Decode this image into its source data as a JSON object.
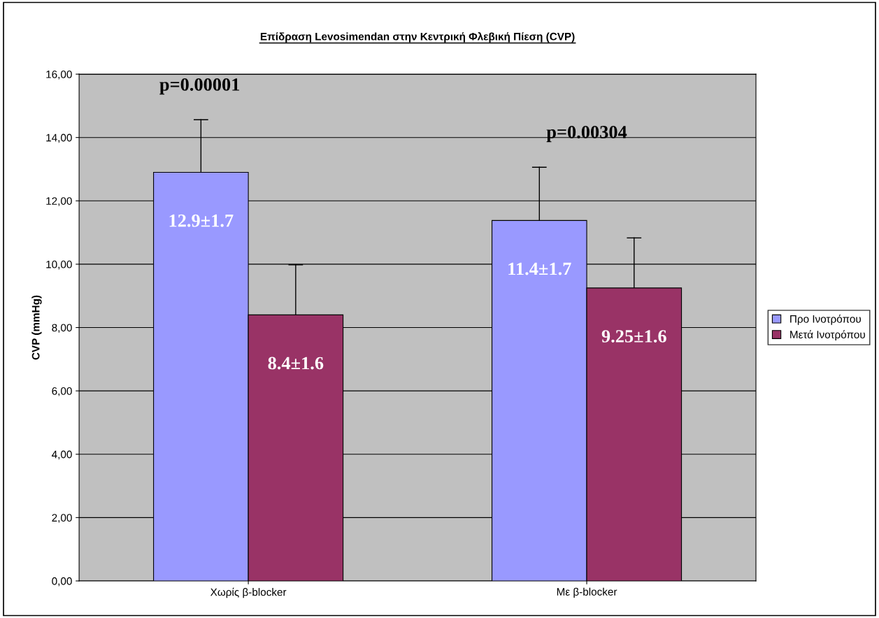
{
  "chart_data": {
    "type": "bar",
    "title": "Επίδραση Levosimendan στην Κεντρική Φλεβική Πίεση (CVP)",
    "ylabel": "CVP (mmHg)",
    "categories": [
      "Χωρίς β-blocker",
      "Με β-blocker"
    ],
    "series": [
      {
        "name": "Προ Ινοτρόπου",
        "color": "#9999ff",
        "values": [
          12.9,
          11.38
        ],
        "errors": [
          [
            12.9,
            14.56
          ],
          [
            11.38,
            13.06
          ]
        ],
        "value_labels": [
          "12.9±1.7",
          "11.4±1.7"
        ]
      },
      {
        "name": "Μετά Ινοτρόπου",
        "color": "#993366",
        "values": [
          8.4,
          9.25
        ],
        "errors": [
          [
            8.4,
            9.98
          ],
          [
            9.25,
            10.83
          ]
        ],
        "value_labels": [
          "8.4±1.6",
          "9.25±1.6"
        ]
      }
    ],
    "annotations": [
      "p=0.00001",
      "p=0.00304"
    ],
    "ylim": [
      0,
      16
    ],
    "yticks": [
      {
        "value": 0,
        "label": "0,00"
      },
      {
        "value": 2,
        "label": "2,00"
      },
      {
        "value": 4,
        "label": "4,00"
      },
      {
        "value": 6,
        "label": "6,00"
      },
      {
        "value": 8,
        "label": "8,00"
      },
      {
        "value": 10,
        "label": "10,00"
      },
      {
        "value": 12,
        "label": "12,00"
      },
      {
        "value": 14,
        "label": "14,00"
      },
      {
        "value": 16,
        "label": "16,00"
      }
    ],
    "grid": "y",
    "legend": "right"
  }
}
